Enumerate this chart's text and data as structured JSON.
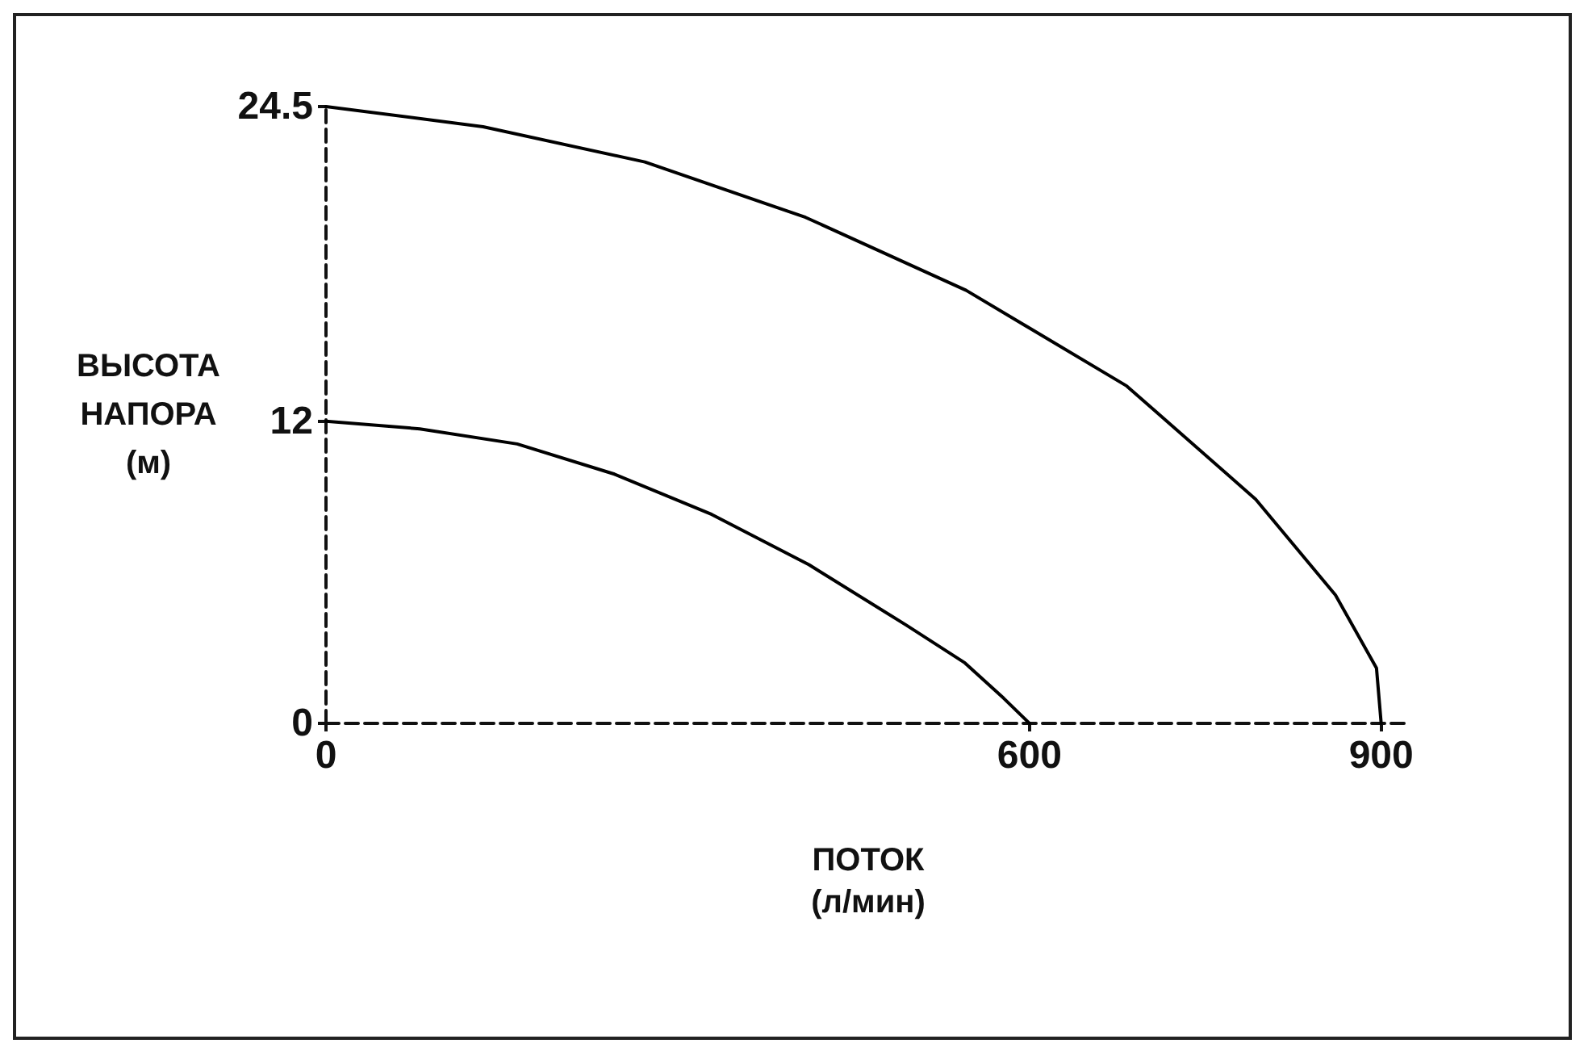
{
  "chart_data": {
    "type": "line",
    "xlabel": "ПОТОК\n(л/мин)",
    "ylabel": "ВЫСОТА\nНАПОРА\n(м)",
    "xlim": [
      0,
      925
    ],
    "ylim": [
      0,
      24.5
    ],
    "xticks": [
      0,
      600,
      900
    ],
    "yticks": [
      0,
      12,
      24.5
    ],
    "grid": false,
    "marker": "none",
    "line_style": "solid",
    "series": [
      {
        "color": "#000000",
        "x": [
          0,
          134,
          272,
          409,
          546,
          683,
          793,
          861,
          896,
          900
        ],
        "values": [
          24.5,
          23.7,
          22.3,
          20.1,
          17.2,
          13.4,
          8.9,
          5.1,
          2.2,
          0
        ]
      },
      {
        "color": "#000000",
        "x": [
          0,
          80,
          163,
          246,
          329,
          412,
          495,
          545,
          578,
          600
        ],
        "values": [
          12,
          11.7,
          11.1,
          9.9,
          8.3,
          6.3,
          3.9,
          2.4,
          1.0,
          0
        ]
      }
    ]
  }
}
